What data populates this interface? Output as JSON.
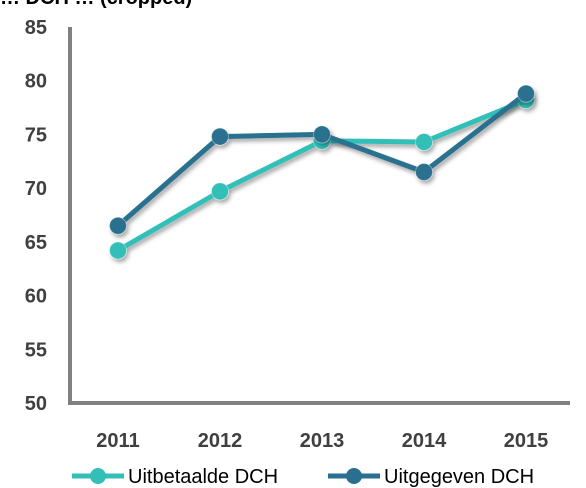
{
  "chart_data": {
    "type": "line",
    "title": "… DCH … (cropped)",
    "categories": [
      "2011",
      "2012",
      "2013",
      "2014",
      "2015"
    ],
    "ylim": [
      50,
      85
    ],
    "yticks": [
      50,
      55,
      60,
      65,
      70,
      75,
      80,
      85
    ],
    "grid": false,
    "legend_position": "bottom",
    "series": [
      {
        "name": "Uitbetaalde DCH",
        "color": "#33bfb8",
        "values": [
          64.2,
          69.7,
          74.4,
          74.3,
          78.2
        ]
      },
      {
        "name": "Uitgegeven DCH",
        "color": "#2a6f8f",
        "values": [
          66.5,
          74.8,
          75.0,
          71.5,
          78.8
        ]
      }
    ]
  }
}
